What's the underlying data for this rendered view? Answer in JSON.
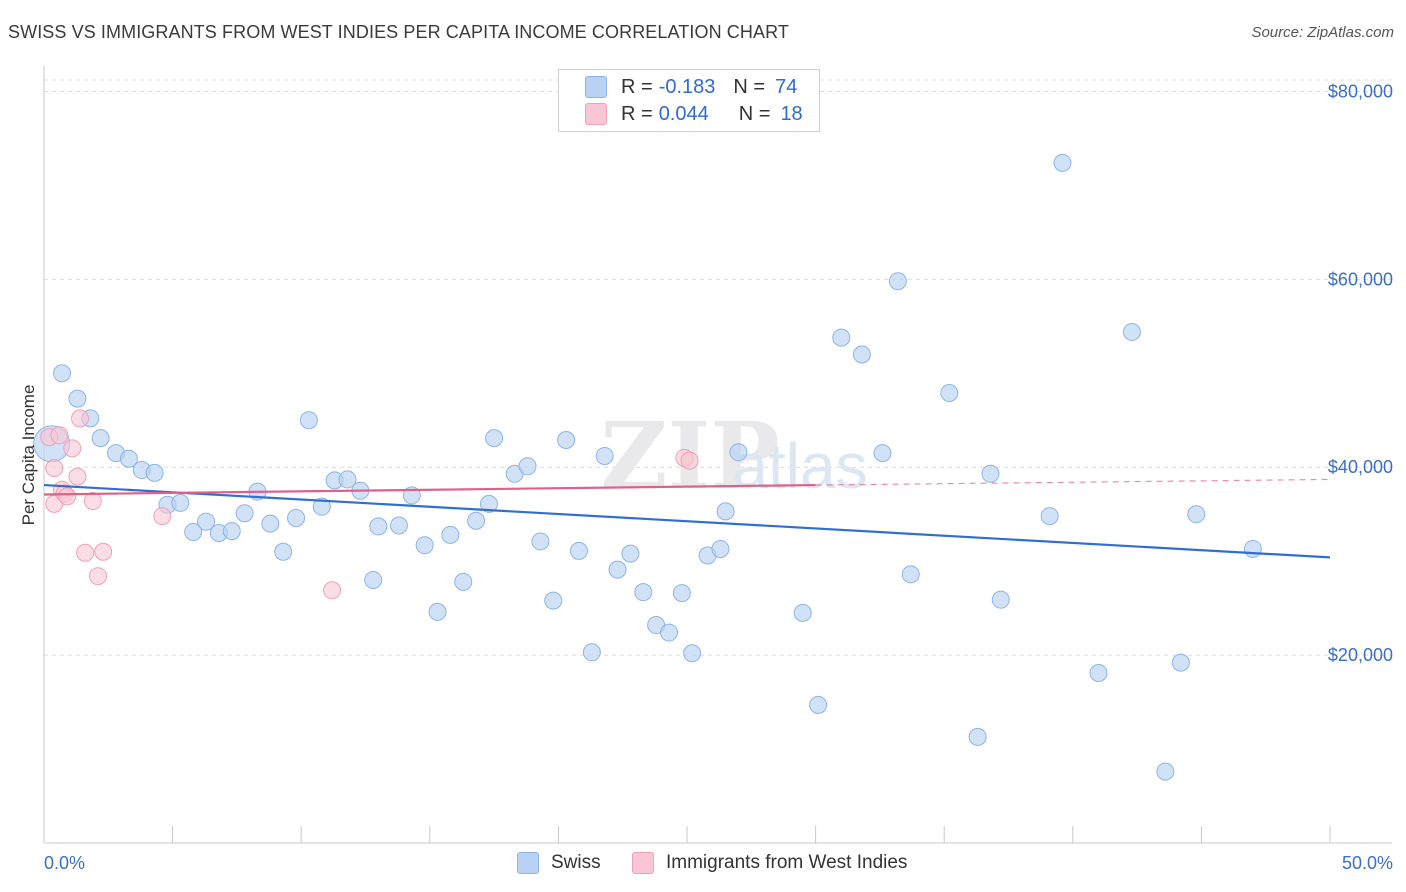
{
  "title": "SWISS VS IMMIGRANTS FROM WEST INDIES PER CAPITA INCOME CORRELATION CHART",
  "source": "Source: ZipAtlas.com",
  "watermark": "ZIPatlas",
  "legend": {
    "r_label": "R =",
    "n_label": "N =",
    "series": [
      {
        "name": "Swiss",
        "r": "-0.183",
        "n": "74",
        "color": "#8db4ea",
        "fill": "#b9d2f3",
        "line": "#2f6fd0"
      },
      {
        "name": "Immigrants from West Indies",
        "r": "0.044",
        "n": "18",
        "color": "#f0a0b8",
        "fill": "#f8c6d4",
        "line": "#e0608a"
      }
    ]
  },
  "chart_data": {
    "type": "scatter",
    "title": "SWISS VS IMMIGRANTS FROM WEST INDIES PER CAPITA INCOME CORRELATION CHART",
    "xlabel": "",
    "ylabel": "Per Capita Income",
    "xlim": [
      0,
      50
    ],
    "ylim": [
      0,
      80000
    ],
    "x_tick_labels": [
      "0.0%",
      "50.0%"
    ],
    "y_ticks": [
      20000,
      40000,
      60000,
      80000
    ],
    "y_tick_labels": [
      "$20,000",
      "$40,000",
      "$60,000",
      "$80,000"
    ],
    "grid": true,
    "legend_position": "top-center",
    "series": [
      {
        "name": "Swiss",
        "points": [
          [
            0.3,
            42500
          ],
          [
            0.7,
            50000
          ],
          [
            1.3,
            47300
          ],
          [
            1.8,
            45200
          ],
          [
            2.2,
            43100
          ],
          [
            2.8,
            41500
          ],
          [
            3.3,
            40900
          ],
          [
            3.8,
            39700
          ],
          [
            4.3,
            39400
          ],
          [
            4.8,
            36000
          ],
          [
            5.3,
            36200
          ],
          [
            5.8,
            33100
          ],
          [
            6.3,
            34200
          ],
          [
            6.8,
            33000
          ],
          [
            7.3,
            33200
          ],
          [
            7.8,
            35100
          ],
          [
            8.3,
            37400
          ],
          [
            8.8,
            34000
          ],
          [
            9.3,
            31000
          ],
          [
            9.8,
            34600
          ],
          [
            10.3,
            45000
          ],
          [
            10.8,
            35800
          ],
          [
            11.3,
            38600
          ],
          [
            11.8,
            38700
          ],
          [
            12.3,
            37500
          ],
          [
            12.8,
            28000
          ],
          [
            13.0,
            33700
          ],
          [
            13.8,
            33800
          ],
          [
            14.3,
            37000
          ],
          [
            14.8,
            31700
          ],
          [
            15.3,
            24600
          ],
          [
            15.8,
            32800
          ],
          [
            16.3,
            27800
          ],
          [
            16.8,
            34300
          ],
          [
            17.3,
            36100
          ],
          [
            17.5,
            43100
          ],
          [
            18.3,
            39300
          ],
          [
            18.8,
            40100
          ],
          [
            19.3,
            32100
          ],
          [
            19.8,
            25800
          ],
          [
            20.3,
            42900
          ],
          [
            20.8,
            31100
          ],
          [
            21.3,
            20300
          ],
          [
            21.8,
            41200
          ],
          [
            22.3,
            29100
          ],
          [
            22.8,
            30800
          ],
          [
            23.3,
            26700
          ],
          [
            23.8,
            23200
          ],
          [
            24.3,
            22400
          ],
          [
            24.8,
            26600
          ],
          [
            25.2,
            20200
          ],
          [
            25.8,
            30600
          ],
          [
            26.3,
            31300
          ],
          [
            26.5,
            35300
          ],
          [
            27.0,
            41600
          ],
          [
            29.5,
            24500
          ],
          [
            30.1,
            14700
          ],
          [
            31.0,
            53800
          ],
          [
            31.8,
            52000
          ],
          [
            32.6,
            41500
          ],
          [
            33.2,
            59800
          ],
          [
            33.7,
            28600
          ],
          [
            35.2,
            47900
          ],
          [
            36.3,
            11300
          ],
          [
            36.8,
            39300
          ],
          [
            37.2,
            25900
          ],
          [
            39.1,
            34800
          ],
          [
            39.6,
            72400
          ],
          [
            41.0,
            18100
          ],
          [
            42.3,
            54400
          ],
          [
            43.6,
            7600
          ],
          [
            44.2,
            19200
          ],
          [
            44.8,
            35000
          ],
          [
            47.0,
            31300
          ]
        ],
        "trend": {
          "x": [
            0,
            50
          ],
          "y": [
            38100,
            30400
          ]
        }
      },
      {
        "name": "Immigrants from West Indies",
        "points": [
          [
            0.2,
            43200
          ],
          [
            0.4,
            39900
          ],
          [
            0.4,
            36100
          ],
          [
            0.6,
            43400
          ],
          [
            0.7,
            37600
          ],
          [
            0.8,
            37200
          ],
          [
            0.9,
            36900
          ],
          [
            1.1,
            42000
          ],
          [
            1.3,
            39000
          ],
          [
            1.4,
            45200
          ],
          [
            1.6,
            30900
          ],
          [
            1.9,
            36400
          ],
          [
            2.1,
            28400
          ],
          [
            2.3,
            31000
          ],
          [
            4.6,
            34800
          ],
          [
            11.2,
            26900
          ],
          [
            24.9,
            41000
          ],
          [
            25.1,
            40700
          ]
        ],
        "trend": {
          "x": [
            0,
            30
          ],
          "y": [
            37100,
            38100
          ]
        },
        "trend_extension": {
          "x": [
            30,
            50
          ],
          "y": [
            38100,
            38700
          ]
        }
      }
    ]
  }
}
